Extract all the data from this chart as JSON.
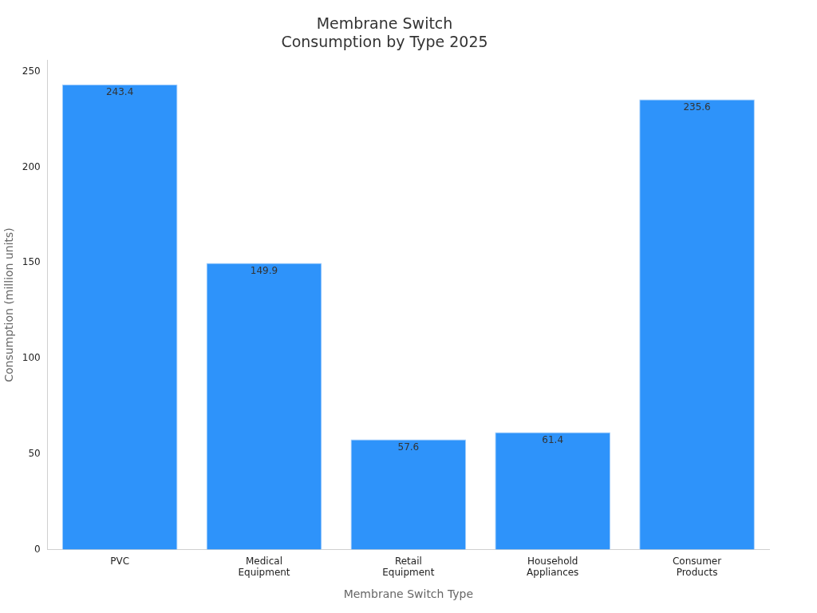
{
  "chart_data": {
    "type": "bar",
    "title": "Membrane Switch\nConsumption by Type 2025",
    "xlabel": "Membrane Switch Type",
    "ylabel": "Consumption (million units)",
    "categories": [
      "PVC",
      "Medical\nEquipment",
      "Retail\nEquipment",
      "Household\nAppliances",
      "Consumer\nProducts"
    ],
    "values": [
      243.4,
      149.9,
      57.6,
      61.4,
      235.6
    ],
    "color": "#2e93fa",
    "ylim": [
      0,
      256
    ],
    "yticks": [
      0,
      50,
      100,
      150,
      200,
      250
    ],
    "grid": false,
    "legend": false,
    "data_labels": true
  }
}
